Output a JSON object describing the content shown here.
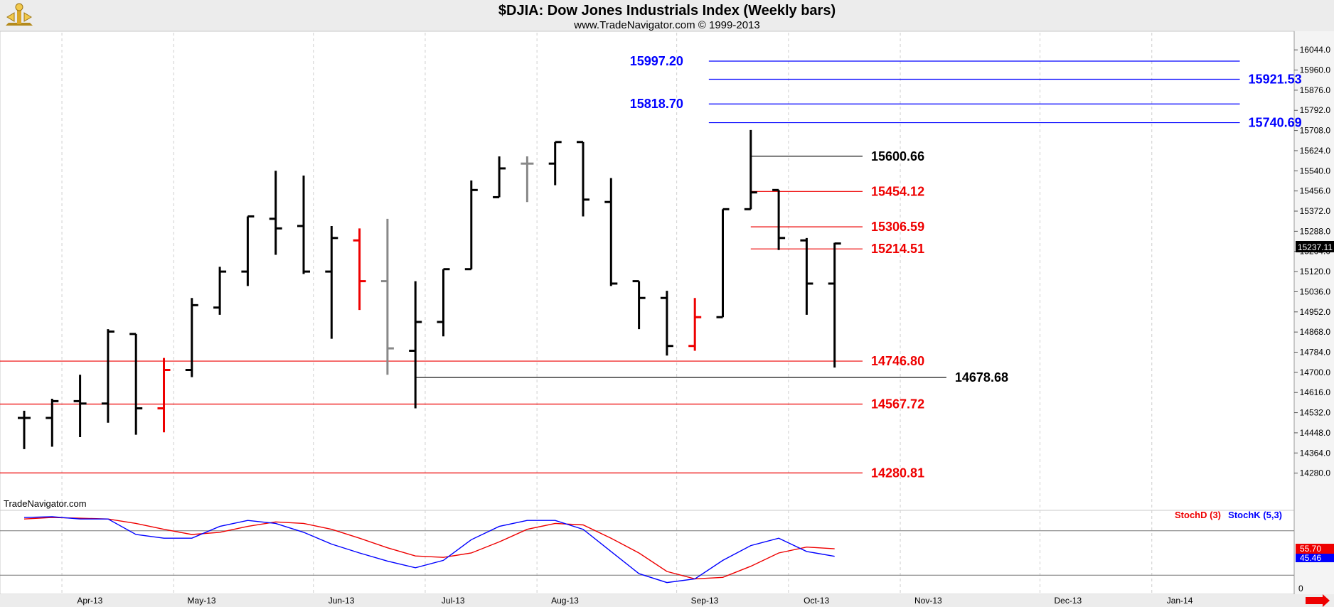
{
  "header": {
    "title": "$DJIA:  Dow Jones Industrials Index  (Weekly bars)",
    "subtitle": "www.TradeNavigator.com © 1999-2013",
    "watermark": "TradeNavigator.com",
    "logo_icon": "trade-navigator-logo-icon",
    "nav_icon": "right-arrow-icon"
  },
  "chart_data": {
    "type": "ohlc",
    "price_axis": {
      "ylim": [
        14196.0,
        16086.0
      ],
      "ticks": [
        "16044.0",
        "15960.0",
        "15876.0",
        "15792.0",
        "15708.0",
        "15624.0",
        "15540.0",
        "15456.0",
        "15372.0",
        "15288.0",
        "15204.0",
        "15120.0",
        "15036.0",
        "14952.0",
        "14868.0",
        "14784.0",
        "14700.0",
        "14616.0",
        "14532.0",
        "14448.0",
        "14364.0",
        "14280.0"
      ],
      "last_price": "15237.11"
    },
    "x_axis": {
      "labels": [
        "Apr-13",
        "May-13",
        "Jun-13",
        "Jul-13",
        "Aug-13",
        "Sep-13",
        "Oct-13",
        "Nov-13",
        "Dec-13",
        "Jan-14"
      ],
      "weeks_before_first_label": 2,
      "weeks_per_label": [
        4,
        5,
        4,
        4,
        5,
        4,
        4,
        5,
        4,
        4
      ]
    },
    "bars": [
      {
        "week": 0,
        "open": 14510,
        "high": 14540,
        "low": 14380,
        "close": 14510,
        "color": "#000000"
      },
      {
        "week": 1,
        "open": 14510,
        "high": 14590,
        "low": 14390,
        "close": 14580,
        "color": "#000000"
      },
      {
        "week": 2,
        "open": 14580,
        "high": 14690,
        "low": 14430,
        "close": 14570,
        "color": "#000000"
      },
      {
        "week": 3,
        "open": 14570,
        "high": 14880,
        "low": 14490,
        "close": 14870,
        "color": "#000000"
      },
      {
        "week": 4,
        "open": 14860,
        "high": 14860,
        "low": 14440,
        "close": 14550,
        "color": "#000000"
      },
      {
        "week": 5,
        "open": 14550,
        "high": 14760,
        "low": 14450,
        "close": 14710,
        "color": "#ee0000"
      },
      {
        "week": 6,
        "open": 14710,
        "high": 15010,
        "low": 14680,
        "close": 14980,
        "color": "#000000"
      },
      {
        "week": 7,
        "open": 14970,
        "high": 15140,
        "low": 14940,
        "close": 15120,
        "color": "#000000"
      },
      {
        "week": 8,
        "open": 15120,
        "high": 15350,
        "low": 15060,
        "close": 15350,
        "color": "#000000"
      },
      {
        "week": 9,
        "open": 15340,
        "high": 15540,
        "low": 15190,
        "close": 15300,
        "color": "#000000"
      },
      {
        "week": 10,
        "open": 15310,
        "high": 15520,
        "low": 15110,
        "close": 15120,
        "color": "#000000"
      },
      {
        "week": 11,
        "open": 15120,
        "high": 15310,
        "low": 14840,
        "close": 15260,
        "color": "#000000"
      },
      {
        "week": 12,
        "open": 15250,
        "high": 15300,
        "low": 14960,
        "close": 15080,
        "color": "#ee0000"
      },
      {
        "week": 13,
        "open": 15080,
        "high": 15340,
        "low": 14690,
        "close": 14800,
        "color": "#888888"
      },
      {
        "week": 14,
        "open": 14790,
        "high": 15080,
        "low": 14550,
        "close": 14910,
        "color": "#000000"
      },
      {
        "week": 15,
        "open": 14910,
        "high": 15130,
        "low": 14850,
        "close": 15130,
        "color": "#000000"
      },
      {
        "week": 16,
        "open": 15130,
        "high": 15500,
        "low": 15130,
        "close": 15460,
        "color": "#000000"
      },
      {
        "week": 17,
        "open": 15430,
        "high": 15600,
        "low": 15430,
        "close": 15550,
        "color": "#000000"
      },
      {
        "week": 18,
        "open": 15570,
        "high": 15600,
        "low": 15410,
        "close": 15570,
        "color": "#888888"
      },
      {
        "week": 19,
        "open": 15570,
        "high": 15660,
        "low": 15480,
        "close": 15660,
        "color": "#000000"
      },
      {
        "week": 20,
        "open": 15660,
        "high": 15660,
        "low": 15350,
        "close": 15420,
        "color": "#000000"
      },
      {
        "week": 21,
        "open": 15410,
        "high": 15510,
        "low": 15060,
        "close": 15070,
        "color": "#000000"
      },
      {
        "week": 22,
        "open": 15080,
        "high": 15080,
        "low": 14880,
        "close": 15010,
        "color": "#000000"
      },
      {
        "week": 23,
        "open": 15010,
        "high": 15040,
        "low": 14770,
        "close": 14810,
        "color": "#000000"
      },
      {
        "week": 24,
        "open": 14810,
        "high": 15010,
        "low": 14790,
        "close": 14930,
        "color": "#ee0000"
      },
      {
        "week": 25,
        "open": 14930,
        "high": 15380,
        "low": 14930,
        "close": 15380,
        "color": "#000000"
      },
      {
        "week": 26,
        "open": 15380,
        "high": 15710,
        "low": 15380,
        "close": 15450,
        "color": "#000000"
      },
      {
        "week": 27,
        "open": 15460,
        "high": 15460,
        "low": 15210,
        "close": 15260,
        "color": "#000000"
      },
      {
        "week": 28,
        "open": 15250,
        "high": 15260,
        "low": 14940,
        "close": 15070,
        "color": "#000000"
      },
      {
        "week": 29,
        "open": 15070,
        "high": 15240,
        "low": 14720,
        "close": 15237.11,
        "color": "#000000"
      }
    ],
    "levels": [
      {
        "value": 15997.2,
        "label": "15997.20",
        "color": "#0000ff",
        "line_from_week": 24.5,
        "line_to_week": 43.5,
        "label_side": "left-outside"
      },
      {
        "value": 15921.53,
        "label": "15921.53",
        "color": "#0000ff",
        "line_from_week": 24.5,
        "line_to_week": 43.5,
        "label_side": "right"
      },
      {
        "value": 15818.7,
        "label": "15818.70",
        "color": "#0000ff",
        "line_from_week": 24.5,
        "line_to_week": 43.5,
        "label_side": "left-outside"
      },
      {
        "value": 15740.69,
        "label": "15740.69",
        "color": "#0000ff",
        "line_from_week": 24.5,
        "line_to_week": 43.5,
        "label_side": "right"
      },
      {
        "value": 15600.66,
        "label": "15600.66",
        "color": "#000000",
        "line_from_week": 26,
        "line_to_week": 30,
        "label_side": "right"
      },
      {
        "value": 15454.12,
        "label": "15454.12",
        "color": "#ee0000",
        "line_from_week": 26,
        "line_to_week": 30,
        "label_side": "right"
      },
      {
        "value": 15306.59,
        "label": "15306.59",
        "color": "#ee0000",
        "line_from_week": 26,
        "line_to_week": 30,
        "label_side": "right"
      },
      {
        "value": 15214.51,
        "label": "15214.51",
        "color": "#ee0000",
        "line_from_week": 26,
        "line_to_week": 30,
        "label_side": "right"
      },
      {
        "value": 14746.8,
        "label": "14746.80",
        "color": "#ee0000",
        "line_from_week": -1,
        "line_to_week": 30,
        "label_side": "right"
      },
      {
        "value": 14678.68,
        "label": "14678.68",
        "color": "#000000",
        "line_from_week": 14,
        "line_to_week": 33,
        "label_side": "right"
      },
      {
        "value": 14567.72,
        "label": "14567.72",
        "color": "#ee0000",
        "line_from_week": -1,
        "line_to_week": 30,
        "label_side": "right"
      },
      {
        "value": 14280.81,
        "label": "14280.81",
        "color": "#ee0000",
        "line_from_week": -1,
        "line_to_week": 30,
        "label_side": "right"
      }
    ],
    "stochastic": {
      "legend": {
        "stoch_d": "StochD (3)",
        "stoch_k": "StochK (5,3)"
      },
      "ylim": [
        0,
        100
      ],
      "zero_label": "0",
      "upper_band": 80,
      "lower_band": 20,
      "stoch_d": {
        "color": "#ee0000",
        "last_label": "55.70",
        "values": [
          96,
          98,
          97,
          96,
          90,
          82,
          75,
          78,
          86,
          92,
          90,
          82,
          70,
          57,
          46,
          44,
          50,
          65,
          82,
          90,
          88,
          70,
          50,
          25,
          15,
          17,
          32,
          50,
          58,
          55.7
        ]
      },
      "stoch_k": {
        "color": "#0000ff",
        "last_label": "45.46",
        "values": [
          98,
          99,
          96,
          96,
          75,
          70,
          70,
          86,
          94,
          90,
          78,
          62,
          50,
          39,
          30,
          40,
          68,
          86,
          94,
          94,
          82,
          52,
          22,
          10,
          15,
          40,
          60,
          70,
          52,
          45.46
        ]
      }
    }
  }
}
